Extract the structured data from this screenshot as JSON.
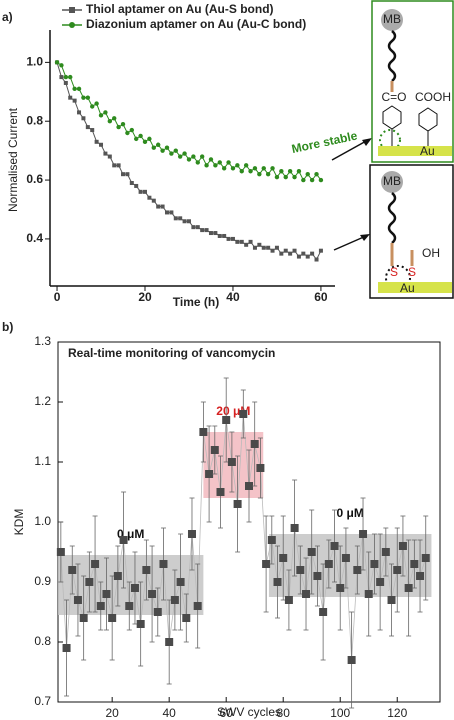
{
  "chart_data": [
    {
      "type": "line",
      "panel": "a)",
      "xlabel": "Time (h)",
      "ylabel": "Normalised Current",
      "xlim": [
        -1.6,
        63.2
      ],
      "ylim": [
        0.24,
        1.11
      ],
      "xticks": [
        0,
        20,
        40,
        60
      ],
      "yticks": [
        0.4,
        0.6,
        0.8,
        {
          "value": 1,
          "label": "1.0"
        }
      ],
      "annotations": [
        "More stable"
      ],
      "insets": [
        {
          "labels": [
            "MB",
            "C=O",
            "COOH",
            "Au"
          ]
        },
        {
          "labels": [
            "MB",
            "OH",
            "S",
            "S",
            "Au"
          ]
        }
      ],
      "x": [
        0,
        1,
        2,
        3,
        4,
        5,
        6,
        7,
        8,
        9,
        10,
        11,
        12,
        13,
        14,
        15,
        16,
        17,
        18,
        19,
        20,
        21,
        22,
        23,
        24,
        25,
        26,
        27,
        28,
        29,
        30,
        31,
        32,
        33,
        34,
        35,
        36,
        37,
        38,
        39,
        40,
        41,
        42,
        43,
        44,
        45,
        46,
        47,
        48,
        49,
        50,
        51,
        52,
        53,
        54,
        55,
        56,
        57,
        58,
        59,
        60
      ],
      "series": [
        {
          "name": "Thiol aptamer on Au (Au-S bond)",
          "color": "#555555",
          "marker": "square",
          "values": [
            1.0,
            0.95,
            0.93,
            0.88,
            0.87,
            0.83,
            0.81,
            0.78,
            0.77,
            0.73,
            0.72,
            0.69,
            0.68,
            0.65,
            0.65,
            0.62,
            0.62,
            0.59,
            0.58,
            0.56,
            0.56,
            0.54,
            0.53,
            0.51,
            0.51,
            0.49,
            0.49,
            0.47,
            0.47,
            0.46,
            0.46,
            0.44,
            0.44,
            0.43,
            0.43,
            0.42,
            0.42,
            0.41,
            0.41,
            0.4,
            0.4,
            0.39,
            0.39,
            0.38,
            0.39,
            0.37,
            0.38,
            0.37,
            0.37,
            0.36,
            0.37,
            0.35,
            0.36,
            0.35,
            0.36,
            0.34,
            0.35,
            0.34,
            0.35,
            0.33,
            0.36
          ]
        },
        {
          "name": "Diazonium aptamer on Au (Au-C bond)",
          "color": "#2e8b1e",
          "marker": "circle",
          "values": [
            1.0,
            0.99,
            0.95,
            0.95,
            0.91,
            0.91,
            0.88,
            0.88,
            0.85,
            0.86,
            0.82,
            0.83,
            0.8,
            0.81,
            0.78,
            0.79,
            0.76,
            0.77,
            0.74,
            0.75,
            0.73,
            0.74,
            0.71,
            0.72,
            0.7,
            0.71,
            0.69,
            0.7,
            0.68,
            0.69,
            0.67,
            0.68,
            0.66,
            0.68,
            0.65,
            0.67,
            0.65,
            0.66,
            0.64,
            0.66,
            0.64,
            0.65,
            0.63,
            0.65,
            0.63,
            0.64,
            0.62,
            0.64,
            0.62,
            0.64,
            0.61,
            0.63,
            0.61,
            0.63,
            0.61,
            0.63,
            0.6,
            0.62,
            0.6,
            0.62,
            0.6
          ]
        }
      ]
    },
    {
      "type": "scatter",
      "panel": "b)",
      "title": "Real-time monitoring of vancomycin",
      "xlabel": "SWV cycles",
      "ylabel": "KDM",
      "xlim": [
        1,
        135
      ],
      "ylim": [
        0.7,
        1.3
      ],
      "xticks": [
        20,
        40,
        60,
        80,
        100,
        120
      ],
      "yticks": [
        0.7,
        0.8,
        0.9,
        {
          "value": 1,
          "label": "1.0"
        },
        1.1,
        1.2,
        1.3
      ],
      "color": "#4a4a4a",
      "regions": [
        {
          "label": "0 μM",
          "label_color": "#111111",
          "color": "#c4c4c4",
          "x": [
            1,
            52
          ],
          "y": [
            0.845,
            0.945
          ]
        },
        {
          "label": "20 μM",
          "label_color": "#d62020",
          "color": "#f2b8be",
          "x": [
            52,
            73
          ],
          "y": [
            1.04,
            1.15
          ]
        },
        {
          "label": "0 μM",
          "label_color": "#111111",
          "color": "#c4c4c4",
          "x": [
            75,
            132
          ],
          "y": [
            0.875,
            0.98
          ]
        }
      ],
      "x": [
        2,
        4,
        6,
        8,
        10,
        12,
        14,
        16,
        18,
        20,
        22,
        24,
        26,
        28,
        30,
        32,
        34,
        36,
        38,
        40,
        42,
        44,
        46,
        48,
        50,
        52,
        54,
        56,
        58,
        60,
        62,
        64,
        66,
        68,
        70,
        72,
        74,
        76,
        78,
        80,
        82,
        84,
        86,
        88,
        90,
        92,
        94,
        96,
        98,
        100,
        102,
        104,
        106,
        108,
        110,
        112,
        114,
        116,
        118,
        120,
        122,
        124,
        126,
        128,
        130
      ],
      "values": [
        0.95,
        0.79,
        0.92,
        0.87,
        0.84,
        0.9,
        0.93,
        0.86,
        0.88,
        0.84,
        0.91,
        0.97,
        0.86,
        0.89,
        0.83,
        0.92,
        0.88,
        0.85,
        0.93,
        0.8,
        0.87,
        0.9,
        0.84,
        0.98,
        0.86,
        1.15,
        1.08,
        1.12,
        1.05,
        1.17,
        1.1,
        1.03,
        1.18,
        1.06,
        1.13,
        1.09,
        0.93,
        0.97,
        0.9,
        0.94,
        0.87,
        0.99,
        0.92,
        0.88,
        0.95,
        0.91,
        0.85,
        0.93,
        0.96,
        0.89,
        0.94,
        0.77,
        0.92,
        0.98,
        0.88,
        0.93,
        0.9,
        0.95,
        0.87,
        0.92,
        0.96,
        0.89,
        0.93,
        0.91,
        0.94
      ],
      "errors": [
        0.05,
        0.08,
        0.04,
        0.06,
        0.07,
        0.05,
        0.08,
        0.04,
        0.06,
        0.07,
        0.05,
        0.08,
        0.04,
        0.06,
        0.07,
        0.05,
        0.08,
        0.04,
        0.06,
        0.07,
        0.05,
        0.08,
        0.04,
        0.06,
        0.07,
        0.05,
        0.08,
        0.04,
        0.06,
        0.07,
        0.05,
        0.08,
        0.04,
        0.06,
        0.07,
        0.05,
        0.08,
        0.04,
        0.06,
        0.07,
        0.05,
        0.08,
        0.04,
        0.06,
        0.07,
        0.05,
        0.08,
        0.04,
        0.06,
        0.07,
        0.05,
        0.08,
        0.04,
        0.06,
        0.07,
        0.05,
        0.08,
        0.04,
        0.06,
        0.07,
        0.05,
        0.08,
        0.04,
        0.06,
        0.07
      ]
    }
  ]
}
